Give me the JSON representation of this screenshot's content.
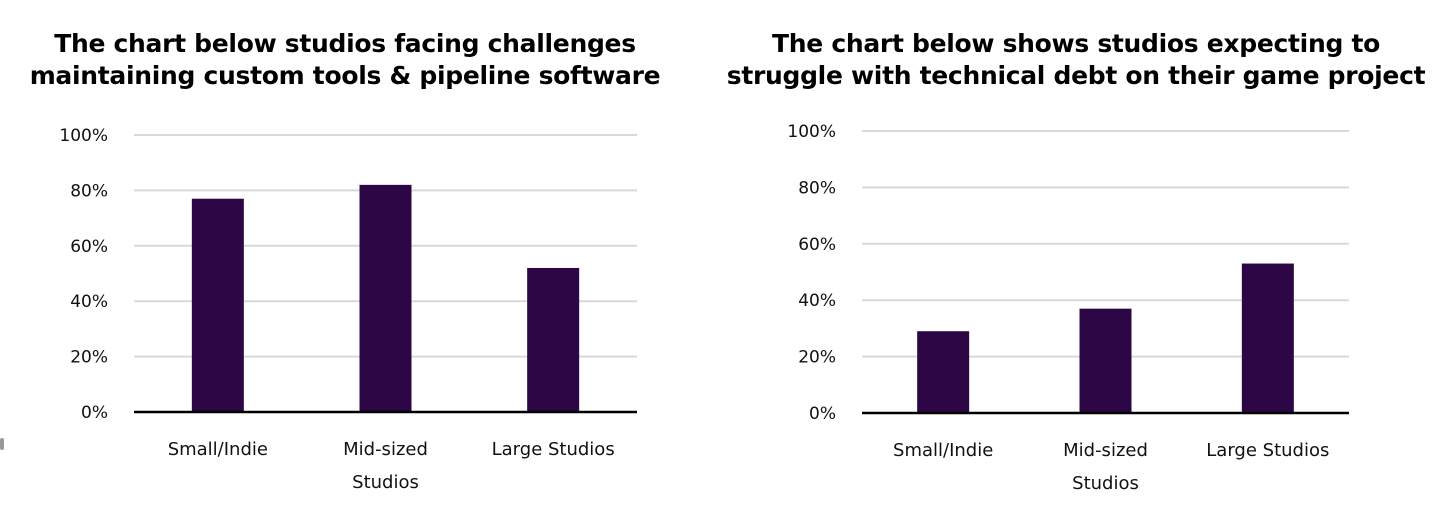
{
  "colors": {
    "bar": "#2d0646",
    "grid": "#d9d9d9",
    "axis": "#000000",
    "text": "#111111"
  },
  "chart_data": [
    {
      "type": "bar",
      "title": "The chart below studios facing challenges maintaining custom tools & pipeline software",
      "title_lines": [
        "The chart below studios facing challenges",
        "maintaining custom tools & pipeline software"
      ],
      "categories": [
        "Small/Indie",
        "Mid-sized Studios",
        "Large Studios"
      ],
      "category_lines": [
        [
          "Small/Indie"
        ],
        [
          "Mid-sized",
          "Studios"
        ],
        [
          "Large Studios"
        ]
      ],
      "values": [
        77,
        82,
        52
      ],
      "unit": "%",
      "xlabel": "",
      "ylabel": "",
      "ylim": [
        0,
        100
      ],
      "yticks": [
        0,
        20,
        40,
        60,
        80,
        100
      ],
      "ytick_labels": [
        "0%",
        "20%",
        "40%",
        "60%",
        "80%",
        "100%"
      ],
      "grid": true,
      "legend": "none"
    },
    {
      "type": "bar",
      "title": "The chart below shows studios expecting to struggle with technical debt on their game project",
      "title_lines": [
        "The chart below shows studios expecting to",
        "struggle with technical debt on their game project"
      ],
      "categories": [
        "Small/Indie",
        "Mid-sized Studios",
        "Large Studios"
      ],
      "category_lines": [
        [
          "Small/Indie"
        ],
        [
          "Mid-sized",
          "Studios"
        ],
        [
          "Large Studios"
        ]
      ],
      "values": [
        29,
        37,
        53
      ],
      "unit": "%",
      "xlabel": "",
      "ylabel": "",
      "ylim": [
        0,
        100
      ],
      "yticks": [
        0,
        20,
        40,
        60,
        80,
        100
      ],
      "ytick_labels": [
        "0%",
        "20%",
        "40%",
        "60%",
        "80%",
        "100%"
      ],
      "grid": true,
      "legend": "none"
    }
  ]
}
